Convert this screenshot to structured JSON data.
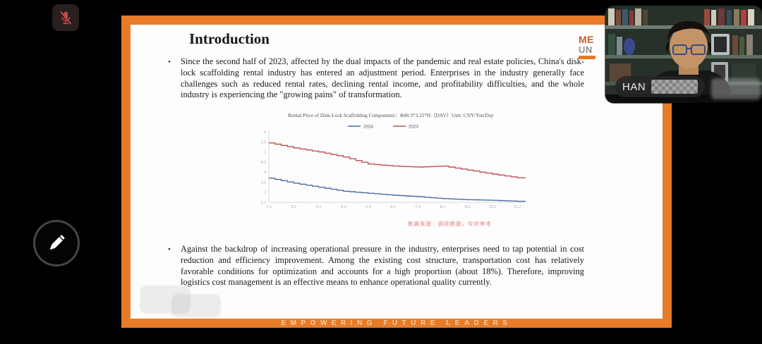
{
  "screen": {
    "bottom_banner": "EMPOWERING FUTURE LEADERS"
  },
  "toolbar": {
    "mic_icon": "microphone-muted-icon",
    "mic_color": "#c94848"
  },
  "annotation": {
    "pencil_icon": "pencil-icon"
  },
  "slide": {
    "accent_color": "#e87b28",
    "title": "Introduction",
    "bullet_glyph": "•",
    "bullet1": "Since the second half of 2023, affected by the dual impacts of the pandemic and real estate policies, China's disk-lock scaffolding rental industry has entered an adjustment period. Enterprises in the industry generally face challenges such as reduced rental rates, declining rental income, and profitability difficulties, and the whole industry is experiencing the \"growing pains\" of transformation.",
    "bullet2": "Against the backdrop of increasing operational pressure in the industry, enterprises need to tap potential in cost reduction and efficiency improvement. Among the existing cost structure, transportation cost has relatively favorable conditions for optimization and accounts for a high proportion (about 18%). Therefore, improving logistics cost management is an effective means to enhance operational quality currently.",
    "logo": {
      "line1": "ME",
      "line2": "UN"
    },
    "source_note": "数据来源：调研数据，仅供参考"
  },
  "webcam": {
    "name_label": "HAN"
  },
  "chart_data": {
    "type": "line",
    "title": "Rental Price of Disk-Lock Scaffolding Components：Φ48.3*3.25*H（DAY）Unit: CNY/Ton/Day",
    "x": [
      "1-2",
      "2-2",
      "3-2",
      "4-2",
      "5-2",
      "6-2",
      "7-2",
      "8-1",
      "9-2",
      "10-2",
      "11-2"
    ],
    "series": [
      {
        "name": "2024",
        "color": "#4a6da7",
        "values": [
          3.7,
          3.45,
          3.25,
          3.05,
          2.95,
          2.85,
          2.78,
          2.68,
          2.63,
          2.6,
          2.55
        ]
      },
      {
        "name": "2023",
        "color": "#c0504d",
        "values": [
          5.45,
          5.2,
          5.0,
          4.75,
          4.4,
          4.3,
          4.25,
          4.3,
          4.1,
          3.9,
          3.72
        ]
      }
    ],
    "ylim": [
      2.5,
      6
    ],
    "ytick_step": 0.5,
    "legend_position": "top",
    "grid": false,
    "xlabel": "",
    "ylabel": ""
  }
}
